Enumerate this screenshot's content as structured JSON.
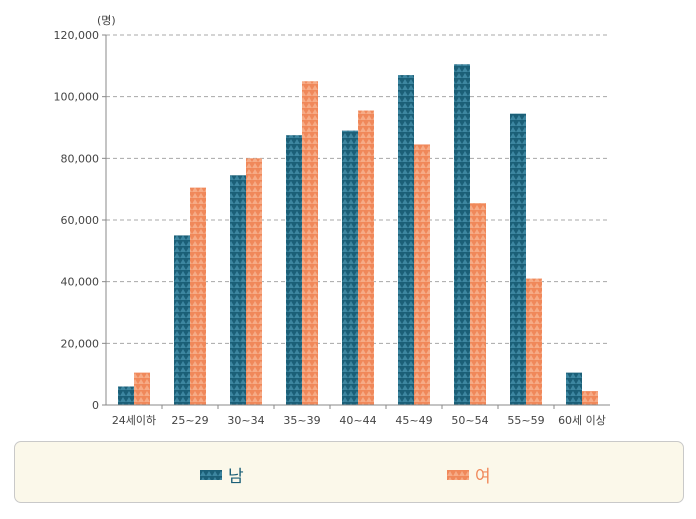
{
  "chart_data": {
    "type": "bar",
    "unit_label": "(명)",
    "categories": [
      "24세이하",
      "25~29",
      "30~34",
      "35~39",
      "40~44",
      "45~49",
      "50~54",
      "55~59",
      "60세 이상"
    ],
    "series": [
      {
        "name": "남",
        "color": "#1b5f77",
        "values": [
          6000,
          55000,
          74500,
          87500,
          89000,
          107000,
          110500,
          94500,
          10500
        ]
      },
      {
        "name": "여",
        "color": "#f0885a",
        "values": [
          10500,
          70500,
          80000,
          105000,
          95500,
          84500,
          65500,
          41000,
          4500
        ]
      }
    ],
    "y_ticks": [
      "0",
      "20,000",
      "40,000",
      "60,000",
      "80,000",
      "100,000",
      "120,000"
    ],
    "ylim": [
      0,
      120000
    ],
    "grid": true,
    "legend_position": "bottom"
  }
}
